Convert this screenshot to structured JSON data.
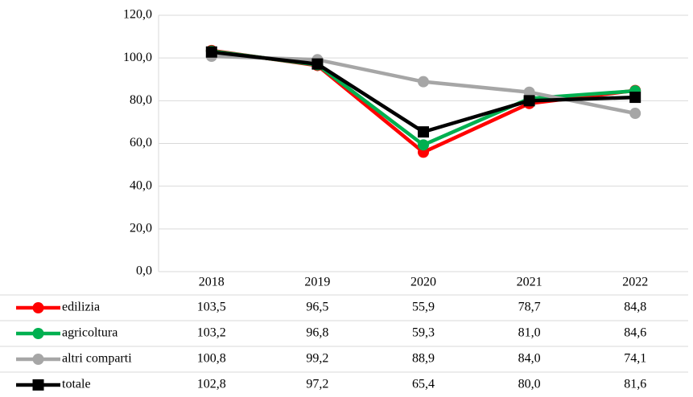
{
  "chart_data": {
    "type": "line",
    "categories": [
      "2018",
      "2019",
      "2020",
      "2021",
      "2022"
    ],
    "series": [
      {
        "name": "edilizia",
        "color": "#ff0000",
        "marker": "circle",
        "values": [
          103.5,
          96.5,
          55.9,
          78.7,
          84.8
        ],
        "value_labels": [
          "103,5",
          "96,5",
          "55,9",
          "78,7",
          "84,8"
        ]
      },
      {
        "name": "agricoltura",
        "color": "#00b050",
        "marker": "circle",
        "values": [
          103.2,
          96.8,
          59.3,
          81.0,
          84.6
        ],
        "value_labels": [
          "103,2",
          "96,8",
          "59,3",
          "81,0",
          "84,6"
        ]
      },
      {
        "name": "altri comparti",
        "color": "#a6a6a6",
        "marker": "circle",
        "values": [
          100.8,
          99.2,
          88.9,
          84.0,
          74.1
        ],
        "value_labels": [
          "100,8",
          "99,2",
          "88,9",
          "84,0",
          "74,1"
        ]
      },
      {
        "name": "totale",
        "color": "#000000",
        "marker": "square",
        "values": [
          102.8,
          97.2,
          65.4,
          80.0,
          81.6
        ],
        "value_labels": [
          "102,8",
          "97,2",
          "65,4",
          "80,0",
          "81,6"
        ]
      }
    ],
    "ylim": [
      0,
      120
    ],
    "yticks": [
      {
        "value": 0,
        "label": "0,0"
      },
      {
        "value": 20,
        "label": "20,0"
      },
      {
        "value": 40,
        "label": "40,0"
      },
      {
        "value": 60,
        "label": "60,0"
      },
      {
        "value": 80,
        "label": "80,0"
      },
      {
        "value": 100,
        "label": "100,0"
      },
      {
        "value": 120,
        "label": "120,0"
      }
    ],
    "grid": true
  }
}
